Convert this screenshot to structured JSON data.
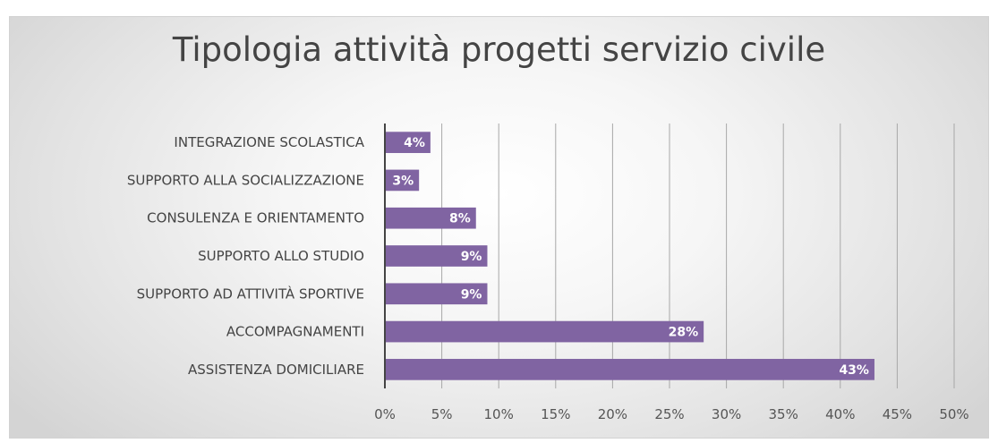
{
  "chart_data": {
    "type": "bar",
    "orientation": "horizontal",
    "title": "Tipologia attività progetti servizio civile",
    "categories": [
      "INTEGRAZIONE SCOLASTICA",
      "SUPPORTO ALLA SOCIALIZZAZIONE",
      "CONSULENZA E ORIENTAMENTO",
      "SUPPORTO ALLO STUDIO",
      "SUPPORTO AD ATTIVITÀ SPORTIVE",
      "ACCOMPAGNAMENTI",
      "ASSISTENZA DOMICILIARE"
    ],
    "values": [
      4,
      3,
      8,
      9,
      9,
      28,
      43
    ],
    "data_labels": [
      "4%",
      "3%",
      "8%",
      "9%",
      "9%",
      "28%",
      "43%"
    ],
    "xlim": [
      0,
      50
    ],
    "x_ticks": [
      "0%",
      "5%",
      "10%",
      "15%",
      "20%",
      "25%",
      "30%",
      "35%",
      "40%",
      "45%",
      "50%"
    ],
    "xlabel": "",
    "ylabel": "",
    "bar_color": "#8064a2",
    "grid": true,
    "legend": "none"
  }
}
